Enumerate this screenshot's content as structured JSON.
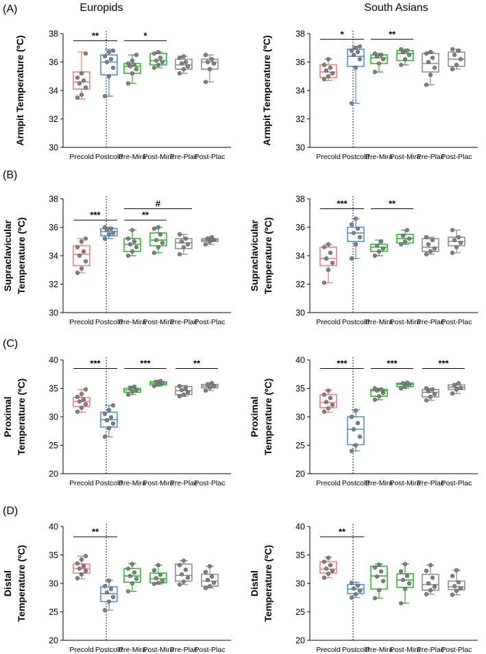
{
  "figure": {
    "column_titles": [
      "Europids",
      "South Asians"
    ],
    "panel_labels": [
      "(A)",
      "(B)",
      "(C)",
      "(D)"
    ],
    "group_colors": {
      "precold": "#f07c7c",
      "postcold": "#4a90d9",
      "mira": "#2db52d",
      "plac": "#8c8c8c"
    },
    "dot_color": "#808080"
  },
  "chart_data": [
    {
      "id": "A-europids",
      "type": "box",
      "row": 0,
      "col": 0,
      "ylabel": [
        "Armpit Temperature (ºC)"
      ],
      "ylim": [
        30,
        38
      ],
      "yticks": [
        30,
        32,
        34,
        36,
        38
      ],
      "categories": [
        "Precold",
        "Postcold",
        "Pre-Mira",
        "Post-Mira",
        "Pre-Plac",
        "Post-Plac"
      ],
      "boxes": [
        [
          33.4,
          34.1,
          34.6,
          35.3,
          36.7
        ],
        [
          33.6,
          35.1,
          36.0,
          36.5,
          36.9
        ],
        [
          34.5,
          35.2,
          35.7,
          35.9,
          36.5
        ],
        [
          35.6,
          35.8,
          36.1,
          36.6,
          36.7
        ],
        [
          35.2,
          35.5,
          35.8,
          36.2,
          36.4
        ],
        [
          34.6,
          35.5,
          36.0,
          36.2,
          36.5
        ]
      ],
      "points": [
        [
          33.5,
          33.7,
          34.2,
          34.5,
          34.7,
          34.9,
          35.2,
          36.6
        ],
        [
          33.6,
          35.0,
          35.6,
          36.0,
          36.2,
          36.4,
          36.7,
          36.8
        ],
        [
          34.5,
          35.2,
          35.5,
          35.7,
          35.8,
          35.9,
          36.1,
          36.5
        ],
        [
          35.6,
          35.8,
          36.0,
          36.1,
          36.3,
          36.6,
          36.7
        ],
        [
          35.2,
          35.5,
          35.7,
          35.9,
          36.0,
          36.3,
          36.4
        ],
        [
          34.6,
          35.5,
          35.9,
          36.0,
          36.2,
          36.5
        ]
      ],
      "sig": [
        {
          "from": 0,
          "to": 1,
          "y": 37.5,
          "label": "**"
        },
        {
          "from": 2,
          "to": 3,
          "y": 37.5,
          "label": "*"
        }
      ]
    },
    {
      "id": "A-southasians",
      "type": "box",
      "row": 0,
      "col": 1,
      "ylabel": [
        "Armpit Temperature (ºC)"
      ],
      "ylim": [
        30,
        38
      ],
      "yticks": [
        30,
        32,
        34,
        36,
        38
      ],
      "categories": [
        "Precold",
        "Postcold",
        "Pre-Mira",
        "Post-Mira",
        "Pre-Plac",
        "Post-Plac"
      ],
      "boxes": [
        [
          34.7,
          34.9,
          35.3,
          35.8,
          36.2
        ],
        [
          33.1,
          35.7,
          36.4,
          36.9,
          37.1
        ],
        [
          35.3,
          35.9,
          36.3,
          36.5,
          36.6
        ],
        [
          35.8,
          36.1,
          36.6,
          36.8,
          36.9
        ],
        [
          34.4,
          35.3,
          35.9,
          36.6,
          36.7
        ],
        [
          35.5,
          35.7,
          36.2,
          36.7,
          36.9
        ]
      ],
      "points": [
        [
          34.8,
          35.0,
          35.2,
          35.4,
          35.6,
          35.8,
          36.2
        ],
        [
          33.1,
          35.6,
          36.2,
          36.5,
          36.7,
          36.8,
          37.0,
          37.1
        ],
        [
          35.3,
          35.9,
          36.2,
          36.4,
          36.5,
          36.6
        ],
        [
          35.8,
          36.2,
          36.5,
          36.7,
          36.8,
          36.9
        ],
        [
          34.4,
          35.1,
          35.6,
          36.0,
          36.3,
          36.6,
          36.7
        ],
        [
          35.5,
          35.8,
          36.2,
          36.5,
          36.8,
          36.9
        ]
      ],
      "sig": [
        {
          "from": 0,
          "to": 1,
          "y": 37.6,
          "label": "*"
        },
        {
          "from": 2,
          "to": 3,
          "y": 37.6,
          "label": "**"
        }
      ]
    },
    {
      "id": "B-europids",
      "type": "box",
      "row": 1,
      "col": 0,
      "ylabel": [
        "Supraclavicular",
        "Temperature (ºC)"
      ],
      "ylim": [
        30,
        38
      ],
      "yticks": [
        30,
        32,
        34,
        36,
        38
      ],
      "categories": [
        "Precold",
        "Postcold",
        "Pre-Mira",
        "Post-Mira",
        "Pre-Plac",
        "Post-Plac"
      ],
      "boxes": [
        [
          32.8,
          33.3,
          34.1,
          34.7,
          35.2
        ],
        [
          35.2,
          35.4,
          35.7,
          35.9,
          36.0
        ],
        [
          34.0,
          34.3,
          34.8,
          35.2,
          35.8
        ],
        [
          34.2,
          34.7,
          35.1,
          35.6,
          36.0
        ],
        [
          34.1,
          34.5,
          34.9,
          35.2,
          35.5
        ],
        [
          34.8,
          35.0,
          35.1,
          35.2,
          35.3
        ]
      ],
      "points": [
        [
          32.8,
          33.1,
          33.6,
          34.0,
          34.3,
          34.6,
          35.0,
          35.2
        ],
        [
          35.2,
          35.5,
          35.6,
          35.8,
          35.9,
          36.0
        ],
        [
          34.0,
          34.3,
          34.6,
          34.8,
          35.0,
          35.2,
          35.8
        ],
        [
          34.2,
          34.6,
          34.9,
          35.1,
          35.5,
          35.9,
          36.0
        ],
        [
          34.1,
          34.6,
          34.8,
          35.0,
          35.2,
          35.5
        ],
        [
          34.8,
          35.0,
          35.1,
          35.2,
          35.3
        ]
      ],
      "sig": [
        {
          "from": 0,
          "to": 1,
          "y": 36.5,
          "label": "***"
        },
        {
          "from": 2,
          "to": 3,
          "y": 36.5,
          "label": "**"
        },
        {
          "from": 2,
          "to": 4,
          "y": 37.3,
          "label": "#"
        }
      ]
    },
    {
      "id": "B-southasians",
      "type": "box",
      "row": 1,
      "col": 1,
      "ylabel": [
        "Supraclavicular",
        "Temperature (ºC)"
      ],
      "ylim": [
        30,
        38
      ],
      "yticks": [
        30,
        32,
        34,
        36,
        38
      ],
      "categories": [
        "Precold",
        "Postcold",
        "Pre-Mira",
        "Post-Mira",
        "Pre-Plac",
        "Post-Plac"
      ],
      "boxes": [
        [
          32.1,
          33.3,
          33.8,
          34.6,
          34.8
        ],
        [
          33.8,
          35.0,
          35.6,
          36.0,
          36.6
        ],
        [
          34.0,
          34.3,
          34.6,
          34.8,
          35.1
        ],
        [
          34.8,
          34.9,
          35.2,
          35.5,
          35.8
        ],
        [
          34.1,
          34.3,
          34.6,
          35.2,
          35.3
        ],
        [
          34.2,
          34.7,
          35.0,
          35.3,
          35.8
        ]
      ],
      "points": [
        [
          32.1,
          33.0,
          33.5,
          33.8,
          34.2,
          34.6,
          34.8
        ],
        [
          33.8,
          34.8,
          35.3,
          35.6,
          35.9,
          36.2,
          36.6
        ],
        [
          34.0,
          34.3,
          34.5,
          34.7,
          35.0
        ],
        [
          34.8,
          35.0,
          35.2,
          35.4,
          35.8
        ],
        [
          34.1,
          34.3,
          34.5,
          34.8,
          35.1,
          35.3
        ],
        [
          34.2,
          34.6,
          34.9,
          35.1,
          35.3,
          35.8
        ]
      ],
      "sig": [
        {
          "from": 0,
          "to": 1,
          "y": 37.3,
          "label": "***"
        },
        {
          "from": 2,
          "to": 3,
          "y": 37.3,
          "label": "**"
        }
      ]
    },
    {
      "id": "C-europids",
      "type": "box",
      "row": 2,
      "col": 0,
      "ylabel": [
        "Proximal",
        "Temperature (ºC)"
      ],
      "ylim": [
        20,
        40
      ],
      "yticks": [
        20,
        25,
        30,
        35,
        40
      ],
      "categories": [
        "Precold",
        "Postcold",
        "Pre-Mira",
        "Post-Mira",
        "Pre-Plac",
        "Post-Plac"
      ],
      "boxes": [
        [
          30.8,
          31.8,
          32.7,
          33.4,
          34.8
        ],
        [
          26.5,
          28.2,
          29.5,
          30.8,
          32.0
        ],
        [
          33.9,
          34.3,
          34.7,
          35.0,
          35.4
        ],
        [
          35.4,
          35.6,
          35.9,
          36.2,
          36.4
        ],
        [
          33.6,
          33.9,
          34.6,
          35.3,
          35.5
        ],
        [
          34.6,
          35.1,
          35.4,
          35.7,
          36.0
        ]
      ],
      "points": [
        [
          30.9,
          31.6,
          32.2,
          32.7,
          33.0,
          33.5,
          34.0,
          34.8
        ],
        [
          26.5,
          28.0,
          28.8,
          29.4,
          29.9,
          30.5,
          31.2,
          32.0
        ],
        [
          33.9,
          34.4,
          34.7,
          35.0,
          35.3
        ],
        [
          35.4,
          35.7,
          35.9,
          36.1,
          36.3
        ],
        [
          33.6,
          33.9,
          34.3,
          34.7,
          35.0,
          35.4
        ],
        [
          34.6,
          35.1,
          35.4,
          35.6,
          35.9
        ]
      ],
      "sig": [
        {
          "from": 0,
          "to": 1,
          "y": 38.5,
          "label": "***"
        },
        {
          "from": 2,
          "to": 3,
          "y": 38.5,
          "label": "***"
        },
        {
          "from": 4,
          "to": 5,
          "y": 38.5,
          "label": "**"
        }
      ]
    },
    {
      "id": "C-southasians",
      "type": "box",
      "row": 2,
      "col": 1,
      "ylabel": [
        "Proximal",
        "Temperature (ºC)"
      ],
      "ylim": [
        20,
        40
      ],
      "yticks": [
        20,
        25,
        30,
        35,
        40
      ],
      "categories": [
        "Precold",
        "Postcold",
        "Pre-Mira",
        "Post-Mira",
        "Pre-Plac",
        "Post-Plac"
      ],
      "boxes": [
        [
          30.8,
          31.6,
          32.5,
          33.9,
          34.7
        ],
        [
          24.0,
          25.1,
          27.8,
          30.0,
          31.2
        ],
        [
          33.0,
          33.6,
          34.6,
          34.8,
          35.0
        ],
        [
          35.0,
          35.3,
          35.7,
          35.9,
          36.0
        ],
        [
          32.9,
          33.5,
          34.3,
          34.8,
          35.0
        ],
        [
          34.1,
          34.8,
          35.2,
          35.6,
          35.9
        ]
      ],
      "points": [
        [
          30.9,
          31.5,
          32.1,
          32.6,
          33.3,
          33.9,
          34.6
        ],
        [
          24.0,
          25.0,
          26.5,
          27.8,
          28.9,
          30.0,
          31.1
        ],
        [
          33.0,
          33.6,
          34.2,
          34.6,
          34.8,
          35.0
        ],
        [
          35.0,
          35.4,
          35.7,
          35.9,
          36.0
        ],
        [
          32.9,
          33.5,
          34.0,
          34.5,
          34.8,
          35.0
        ],
        [
          34.1,
          34.8,
          35.1,
          35.5,
          35.9
        ]
      ],
      "sig": [
        {
          "from": 0,
          "to": 1,
          "y": 38.5,
          "label": "***"
        },
        {
          "from": 2,
          "to": 3,
          "y": 38.5,
          "label": "***"
        },
        {
          "from": 4,
          "to": 5,
          "y": 38.5,
          "label": "***"
        }
      ]
    },
    {
      "id": "D-europids",
      "type": "box",
      "row": 3,
      "col": 0,
      "ylabel": [
        "Distal",
        "Temperature (ºC)"
      ],
      "ylim": [
        20,
        40
      ],
      "yticks": [
        20,
        25,
        30,
        35,
        40
      ],
      "categories": [
        "Precold",
        "Postcold",
        "Pre-Mira",
        "Post-Mira",
        "Pre-Plac",
        "Post-Plac"
      ],
      "boxes": [
        [
          30.8,
          31.8,
          32.6,
          33.4,
          34.8
        ],
        [
          25.3,
          26.8,
          28.2,
          29.4,
          30.5
        ],
        [
          28.6,
          30.2,
          31.3,
          32.6,
          33.5
        ],
        [
          29.9,
          30.1,
          30.8,
          31.8,
          33.2
        ],
        [
          29.8,
          30.4,
          31.4,
          33.4,
          34.0
        ],
        [
          29.2,
          29.5,
          30.4,
          31.6,
          33.0
        ]
      ],
      "points": [
        [
          30.9,
          31.6,
          32.2,
          32.6,
          33.0,
          33.5,
          34.2,
          34.8
        ],
        [
          25.3,
          26.8,
          27.6,
          28.4,
          29.0,
          29.5,
          30.5
        ],
        [
          28.6,
          30.0,
          30.8,
          31.3,
          31.9,
          32.6,
          33.4
        ],
        [
          29.9,
          30.1,
          30.5,
          30.9,
          31.5,
          32.3,
          33.2
        ],
        [
          29.8,
          30.3,
          31.0,
          31.6,
          32.4,
          33.2,
          34.0
        ],
        [
          29.2,
          29.5,
          30.1,
          30.6,
          31.2,
          32.0,
          33.0
        ]
      ],
      "sig": [
        {
          "from": 0,
          "to": 1,
          "y": 38.2,
          "label": "**"
        }
      ]
    },
    {
      "id": "D-southasians",
      "type": "box",
      "row": 3,
      "col": 1,
      "ylabel": [
        "Distal",
        "Temperature (ºC)"
      ],
      "ylim": [
        20,
        40
      ],
      "yticks": [
        20,
        25,
        30,
        35,
        40
      ],
      "categories": [
        "Precold",
        "Postcold",
        "Pre-Mira",
        "Post-Mira",
        "Pre-Plac",
        "Post-Plac"
      ],
      "boxes": [
        [
          31.0,
          31.8,
          32.5,
          33.8,
          34.6
        ],
        [
          27.5,
          28.2,
          29.0,
          29.8,
          30.2
        ],
        [
          27.4,
          29.0,
          31.3,
          33.0,
          33.4
        ],
        [
          26.5,
          29.3,
          30.6,
          31.7,
          33.4
        ],
        [
          28.1,
          28.8,
          29.8,
          31.6,
          33.2
        ],
        [
          28.0,
          28.9,
          29.4,
          30.4,
          32.3
        ]
      ],
      "points": [
        [
          31.0,
          31.7,
          32.2,
          32.6,
          33.2,
          33.8,
          34.5
        ],
        [
          27.5,
          28.1,
          28.7,
          29.1,
          29.6,
          30.1
        ],
        [
          27.4,
          28.8,
          30.4,
          31.2,
          32.1,
          32.8,
          33.3
        ],
        [
          26.5,
          29.0,
          30.0,
          30.6,
          31.3,
          32.1,
          33.4
        ],
        [
          28.1,
          28.8,
          29.4,
          30.0,
          31.0,
          32.2,
          33.2
        ],
        [
          28.0,
          28.7,
          29.1,
          29.5,
          30.2,
          31.3,
          32.3
        ]
      ],
      "sig": [
        {
          "from": 0,
          "to": 1,
          "y": 38.2,
          "label": "**"
        }
      ]
    }
  ]
}
